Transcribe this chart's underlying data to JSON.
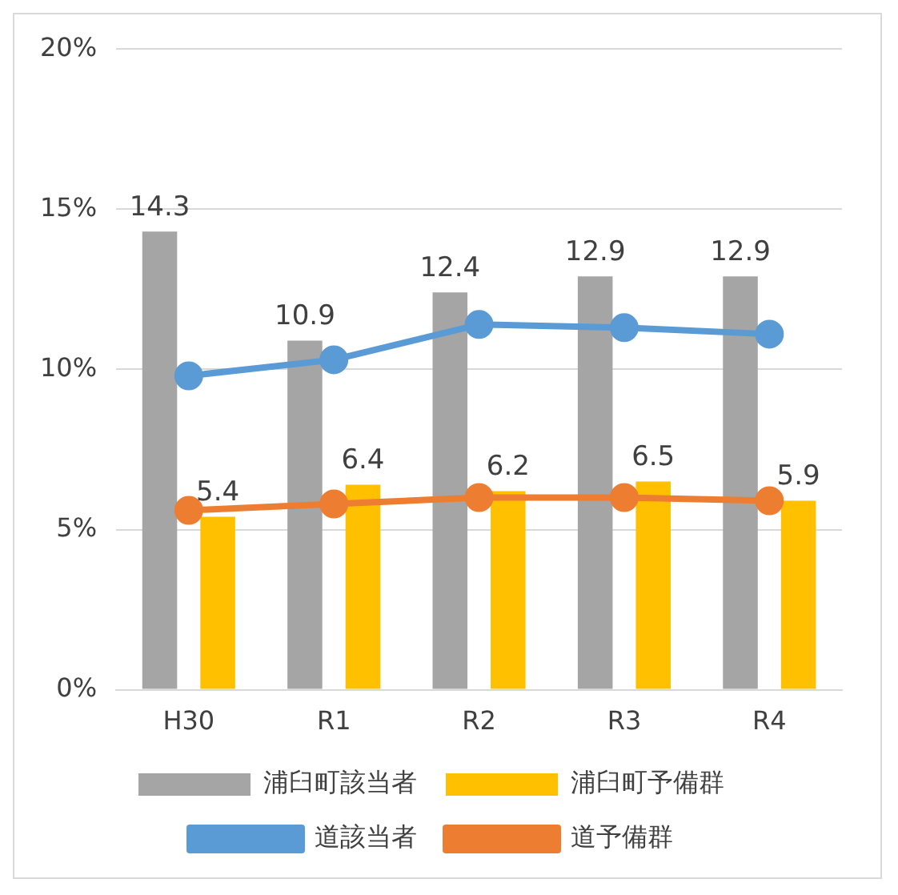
{
  "chart_data": {
    "type": "bar",
    "categories": [
      "H30",
      "R1",
      "R2",
      "R3",
      "R4"
    ],
    "series": [
      {
        "name": "浦臼町該当者",
        "color": "#a5a5a5",
        "values": [
          14.3,
          10.9,
          12.4,
          12.9,
          12.9
        ],
        "value_labels": [
          "14.3",
          "10.9",
          "12.4",
          "12.9",
          "12.9"
        ]
      },
      {
        "name": "浦臼町予備群",
        "color": "#ffc000",
        "values": [
          5.4,
          6.4,
          6.2,
          6.5,
          5.9
        ],
        "value_labels": [
          "5.4",
          "6.4",
          "6.2",
          "6.5",
          "5.9"
        ]
      },
      {
        "name": "道該当者",
        "type": "line",
        "color": "#5b9bd5",
        "values": [
          9.8,
          10.3,
          11.4,
          11.3,
          11.1
        ]
      },
      {
        "name": "道予備群",
        "type": "line",
        "color": "#ed7d31",
        "values": [
          5.6,
          5.8,
          6.0,
          6.0,
          5.9
        ]
      }
    ],
    "ylim": [
      0,
      20
    ],
    "yticks": [
      {
        "value": 0,
        "label": "0%"
      },
      {
        "value": 5,
        "label": "5%"
      },
      {
        "value": 10,
        "label": "10%"
      },
      {
        "value": 15,
        "label": "15%"
      },
      {
        "value": 20,
        "label": "20%"
      }
    ],
    "grid": "y",
    "legend": "bottom",
    "marker": "circle"
  }
}
